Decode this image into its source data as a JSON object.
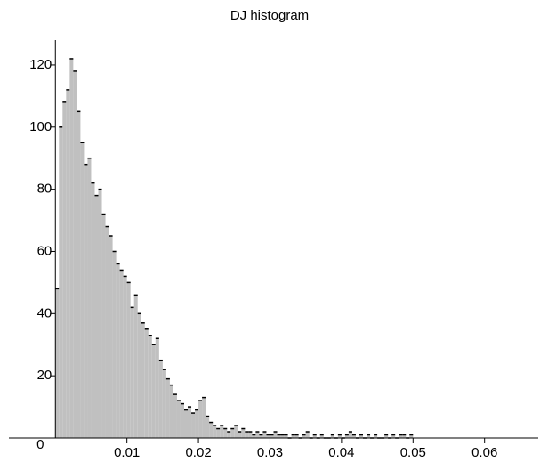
{
  "chart_data": {
    "type": "histogram",
    "title": "DJ histogram",
    "color": "#c0c0c0",
    "line_color": "#000000",
    "bins": [
      0,
      0.0005,
      0.001,
      0.0015,
      0.002,
      0.0025,
      0.003,
      0.0035,
      0.004,
      0.0045,
      0.005,
      0.0055,
      0.006,
      0.0065,
      0.007,
      0.0075,
      0.008,
      0.0085,
      0.009,
      0.0095,
      0.01,
      0.0105,
      0.011,
      0.0115,
      0.012,
      0.0125,
      0.013,
      0.0135,
      0.014,
      0.0145,
      0.015,
      0.0155,
      0.016,
      0.0165,
      0.017,
      0.0175,
      0.018,
      0.0185,
      0.019,
      0.0195,
      0.02,
      0.0205,
      0.021,
      0.0215,
      0.022,
      0.0225,
      0.023,
      0.0235,
      0.024,
      0.0245,
      0.025,
      0.0255,
      0.026,
      0.0265,
      0.027,
      0.0275,
      0.028,
      0.0285,
      0.029,
      0.0295,
      0.03,
      0.0305,
      0.031,
      0.0315,
      0.032,
      0.0325,
      0.033,
      0.0335,
      0.034,
      0.0345,
      0.035,
      0.0355,
      0.036,
      0.0365,
      0.037,
      0.0375,
      0.038,
      0.0385,
      0.039,
      0.0395,
      0.04,
      0.0405,
      0.041,
      0.0415,
      0.042,
      0.0425,
      0.043,
      0.0435,
      0.044,
      0.0445,
      0.045,
      0.0455,
      0.046,
      0.0465,
      0.047,
      0.0475,
      0.048,
      0.0485,
      0.049,
      0.0495,
      0.05
    ],
    "values": [
      48,
      100,
      108,
      112,
      122,
      118,
      105,
      95,
      88,
      90,
      82,
      78,
      80,
      72,
      68,
      65,
      60,
      56,
      54,
      52,
      50,
      42,
      46,
      40,
      37,
      35,
      33,
      30,
      32,
      25,
      22,
      19,
      17,
      14,
      12,
      11,
      9,
      10,
      8,
      9,
      12,
      13,
      7,
      5,
      4,
      3,
      4,
      3,
      2,
      3,
      4,
      2,
      3,
      2,
      2,
      1,
      2,
      1,
      2,
      1,
      1,
      2,
      1,
      1,
      1,
      0,
      1,
      1,
      0,
      1,
      2,
      0,
      1,
      0,
      1,
      0,
      0,
      1,
      0,
      1,
      0,
      1,
      2,
      1,
      0,
      1,
      0,
      1,
      0,
      1,
      0,
      0,
      1,
      0,
      1,
      0,
      1,
      1,
      0,
      1
    ],
    "xlim": [
      -0.0065,
      0.0675
    ],
    "ylim": [
      0,
      128
    ],
    "xticks": [
      0.01,
      0.02,
      0.03,
      0.04,
      0.05,
      0.06
    ],
    "yticks": [
      0,
      20,
      40,
      60,
      80,
      100,
      120
    ]
  }
}
